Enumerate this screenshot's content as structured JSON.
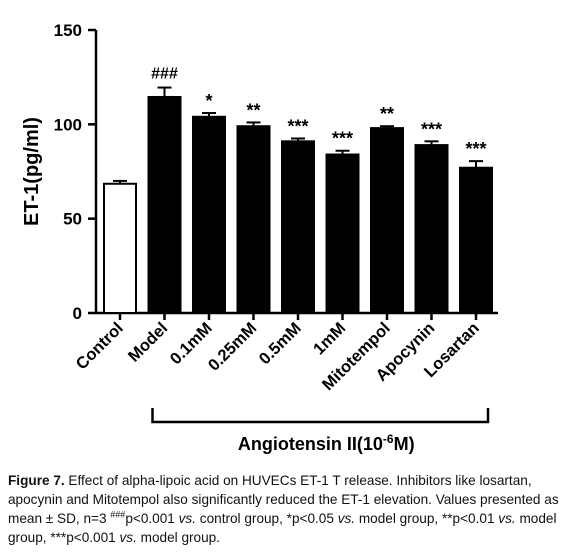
{
  "chart_data": {
    "type": "bar",
    "ylabel": "ET-1(pg/ml)",
    "ylim": [
      0,
      150
    ],
    "yticks": [
      "0",
      "50",
      "100",
      "150"
    ],
    "categories": [
      "Control",
      "Model",
      "0.1mM",
      "0.25mM",
      "0.5mM",
      "1mM",
      "Mitotempol",
      "Apocynin",
      "Losartan"
    ],
    "values": [
      68.5,
      114.5,
      104,
      99,
      91,
      84,
      98,
      89,
      77
    ],
    "errors": [
      1.5,
      5,
      2,
      2,
      1.5,
      2,
      1,
      2,
      3.5
    ],
    "significance": [
      "",
      "###",
      "*",
      "**",
      "***",
      "***",
      "**",
      "***",
      "***"
    ],
    "bar_fills": [
      "#ffffff",
      "#000000",
      "#000000",
      "#000000",
      "#000000",
      "#000000",
      "#000000",
      "#000000",
      "#000000"
    ],
    "group_label_prefix": "Angiotensin II(10",
    "group_label_exp": "-6",
    "group_label_suffix": "M)"
  },
  "caption": {
    "figure_label": "Figure 7.",
    "text1": " Effect of alpha-lipoic acid on HUVECs ET-1 T release. Inhibitors like losartan, apocynin and Mitotempol also significantly reduced the ET-1 elevation. Values presented as mean ± SD, n=3 ",
    "sup_hash": "###",
    "text2": "p<0.001 ",
    "vs1": "vs.",
    "text3": " control group, *p<0.05 ",
    "vs2": "vs.",
    "text4": " model group, **p<0.01 ",
    "vs3": "vs.",
    "text5": " model group, ***p<0.001 ",
    "vs4": "vs.",
    "text6": " model group."
  }
}
